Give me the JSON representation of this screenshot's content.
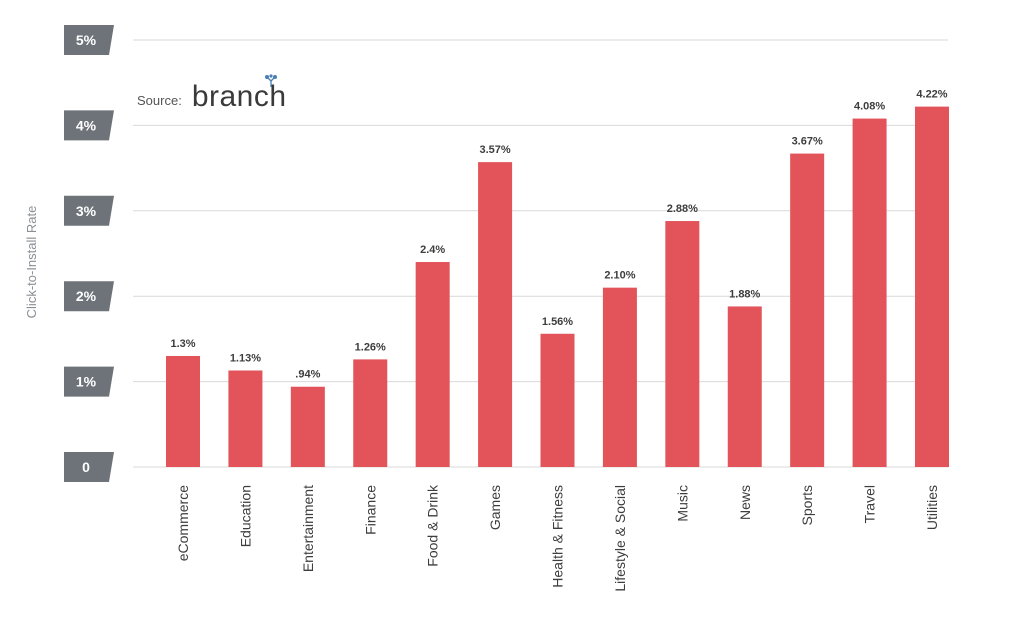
{
  "source": {
    "label": "Source:",
    "logo_text": "branch"
  },
  "colors": {
    "bar": "#e2535a",
    "tick_box": "#6d7379",
    "grid": "#d9d9d9",
    "text": "#3d3d3d",
    "axis_label": "#8a9096",
    "logo_dots": "#4a7fb5"
  },
  "chart_data": {
    "type": "bar",
    "title": "",
    "ylabel": "Click-to-Install Rate",
    "xlabel": "",
    "ylim": [
      0,
      5
    ],
    "yticks": [
      0,
      1,
      2,
      3,
      4,
      5
    ],
    "ytick_labels": [
      "0",
      "1%",
      "2%",
      "3%",
      "4%",
      "5%"
    ],
    "grid": true,
    "categories": [
      "eCommerce",
      "Education",
      "Entertainment",
      "Finance",
      "Food & Drink",
      "Games",
      "Health & Fitness",
      "Lifestyle & Social",
      "Music",
      "News",
      "Sports",
      "Travel",
      "Utilities"
    ],
    "values": [
      1.3,
      1.13,
      0.94,
      1.26,
      2.4,
      3.57,
      1.56,
      2.1,
      2.88,
      1.88,
      3.67,
      4.08,
      4.22
    ],
    "data_labels": [
      "1.3%",
      "1.13%",
      ".94%",
      "1.26%",
      "2.4%",
      "3.57%",
      "1.56%",
      "2.10%",
      "2.88%",
      "1.88%",
      "3.67%",
      "4.08%",
      "4.22%"
    ]
  }
}
